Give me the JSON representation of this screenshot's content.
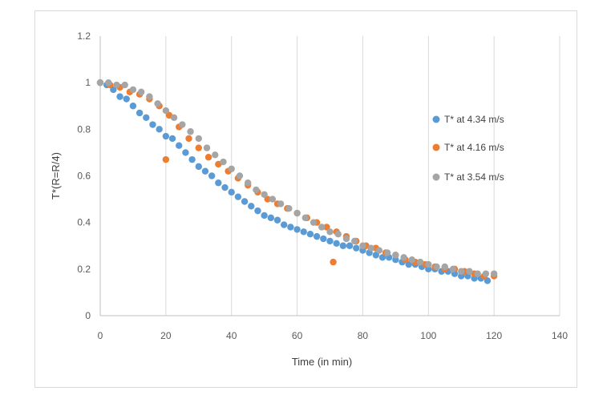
{
  "chart_data": {
    "type": "scatter",
    "title": "",
    "xlabel": "Time (in min)",
    "ylabel": "T*(R=R/4)",
    "xlim": [
      0,
      140
    ],
    "ylim": [
      0,
      1.2
    ],
    "xticks": [
      0,
      20,
      40,
      60,
      80,
      100,
      120,
      140
    ],
    "yticks": [
      0,
      0.2,
      0.4,
      0.6,
      0.8,
      1,
      1.2
    ],
    "grid": "vertical",
    "legend_position": "right",
    "series": [
      {
        "name": "T* at 4.34 m/s",
        "color": "#5b9bd5",
        "x": [
          0,
          2,
          4,
          6,
          8,
          10,
          12,
          14,
          16,
          18,
          20,
          22,
          24,
          26,
          28,
          30,
          32,
          34,
          36,
          38,
          40,
          42,
          44,
          46,
          48,
          50,
          52,
          54,
          56,
          58,
          60,
          62,
          64,
          66,
          68,
          70,
          72,
          74,
          76,
          78,
          80,
          82,
          84,
          86,
          88,
          90,
          92,
          94,
          96,
          98,
          100,
          102,
          104,
          106,
          108,
          110,
          112,
          114,
          116,
          118
        ],
        "y": [
          1.0,
          0.99,
          0.97,
          0.94,
          0.93,
          0.9,
          0.87,
          0.85,
          0.82,
          0.8,
          0.77,
          0.76,
          0.73,
          0.7,
          0.67,
          0.64,
          0.62,
          0.6,
          0.57,
          0.55,
          0.53,
          0.51,
          0.49,
          0.47,
          0.45,
          0.43,
          0.42,
          0.41,
          0.39,
          0.38,
          0.37,
          0.36,
          0.35,
          0.34,
          0.33,
          0.32,
          0.31,
          0.3,
          0.3,
          0.29,
          0.28,
          0.27,
          0.26,
          0.25,
          0.25,
          0.24,
          0.23,
          0.22,
          0.22,
          0.21,
          0.2,
          0.2,
          0.19,
          0.19,
          0.18,
          0.17,
          0.17,
          0.16,
          0.16,
          0.15
        ]
      },
      {
        "name": "T* at 4.16 m/s",
        "color": "#ed7d31",
        "x": [
          0,
          3,
          6,
          9,
          12,
          15,
          18,
          20,
          21,
          24,
          27,
          30,
          33,
          36,
          39,
          42,
          45,
          48,
          51,
          54,
          57,
          60,
          63,
          66,
          69,
          71,
          72,
          75,
          78,
          81,
          84,
          87,
          90,
          93,
          96,
          99,
          102,
          105,
          108,
          111,
          114,
          117,
          120
        ],
        "y": [
          1.0,
          0.99,
          0.98,
          0.96,
          0.95,
          0.93,
          0.9,
          0.67,
          0.86,
          0.81,
          0.76,
          0.72,
          0.68,
          0.65,
          0.62,
          0.59,
          0.56,
          0.53,
          0.5,
          0.48,
          0.46,
          0.44,
          0.42,
          0.4,
          0.38,
          0.23,
          0.36,
          0.34,
          0.32,
          0.3,
          0.29,
          0.27,
          0.26,
          0.24,
          0.23,
          0.22,
          0.21,
          0.2,
          0.2,
          0.19,
          0.18,
          0.17,
          0.17
        ]
      },
      {
        "name": "T* at 3.54 m/s",
        "color": "#a5a5a5",
        "x": [
          0,
          2.5,
          5,
          7.5,
          10,
          12.5,
          15,
          17.5,
          20,
          22.5,
          25,
          27.5,
          30,
          32.5,
          35,
          37.5,
          40,
          42.5,
          45,
          47.5,
          50,
          52.5,
          55,
          57.5,
          60,
          62.5,
          65,
          67.5,
          70,
          72.5,
          75,
          77.5,
          80,
          82.5,
          85,
          87.5,
          90,
          92.5,
          95,
          97.5,
          100,
          102.5,
          105,
          107.5,
          110,
          112.5,
          115,
          117.5,
          120
        ],
        "y": [
          1.0,
          1.0,
          0.99,
          0.99,
          0.97,
          0.96,
          0.94,
          0.91,
          0.88,
          0.85,
          0.82,
          0.79,
          0.76,
          0.72,
          0.69,
          0.66,
          0.63,
          0.6,
          0.57,
          0.54,
          0.52,
          0.5,
          0.48,
          0.46,
          0.44,
          0.42,
          0.4,
          0.38,
          0.36,
          0.35,
          0.33,
          0.32,
          0.3,
          0.29,
          0.28,
          0.27,
          0.26,
          0.25,
          0.24,
          0.23,
          0.22,
          0.21,
          0.21,
          0.2,
          0.19,
          0.19,
          0.18,
          0.18,
          0.18
        ]
      }
    ]
  }
}
